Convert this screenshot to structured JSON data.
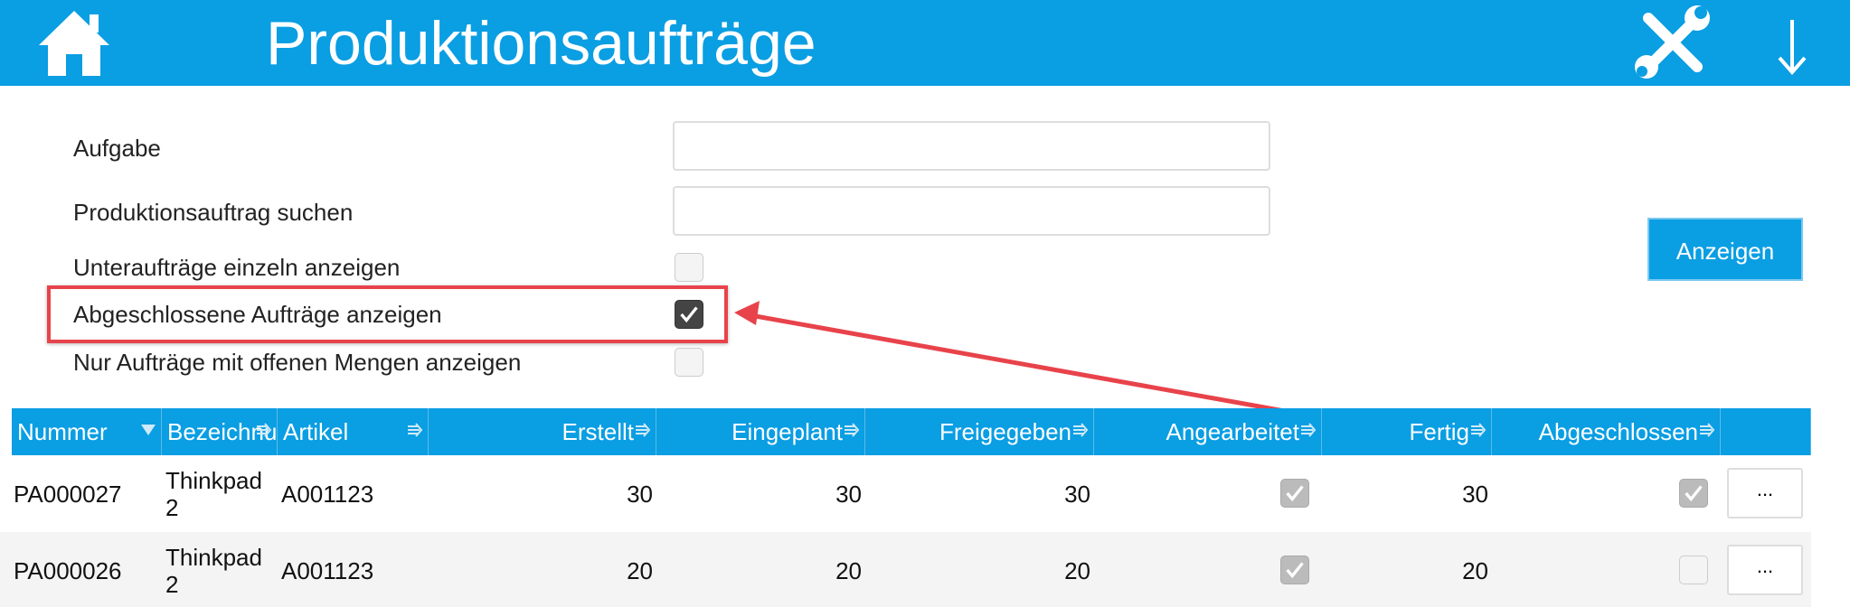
{
  "header": {
    "title": "Produktionsaufträge"
  },
  "form": {
    "fields": [
      {
        "label": "Aufgabe",
        "kind": "input"
      },
      {
        "label": "Produktionsauftrag suchen",
        "kind": "input"
      },
      {
        "label": "Unteraufträge einzeln anzeigen",
        "kind": "checkbox",
        "checked": false
      },
      {
        "label": "Abgeschlossene Aufträge anzeigen",
        "kind": "checkbox",
        "checked": true
      },
      {
        "label": "Nur Aufträge mit offenen Mengen anzeigen",
        "kind": "checkbox",
        "checked": false
      }
    ],
    "button": "Anzeigen"
  },
  "table": {
    "columns": [
      "Nummer",
      "Bezeichnung",
      "Artikel",
      "Erstellt",
      "Eingeplant",
      "Freigegeben",
      "Angearbeitet",
      "Fertig",
      "Abgeschlossen"
    ],
    "rows": [
      [
        "PA000027",
        "Thinkpad 2",
        "A001123",
        "30",
        "30",
        "30",
        true,
        "30",
        true,
        "..."
      ],
      [
        "PA000026",
        "Thinkpad 2",
        "A001123",
        "20",
        "20",
        "20",
        true,
        "20",
        false,
        "..."
      ]
    ]
  }
}
